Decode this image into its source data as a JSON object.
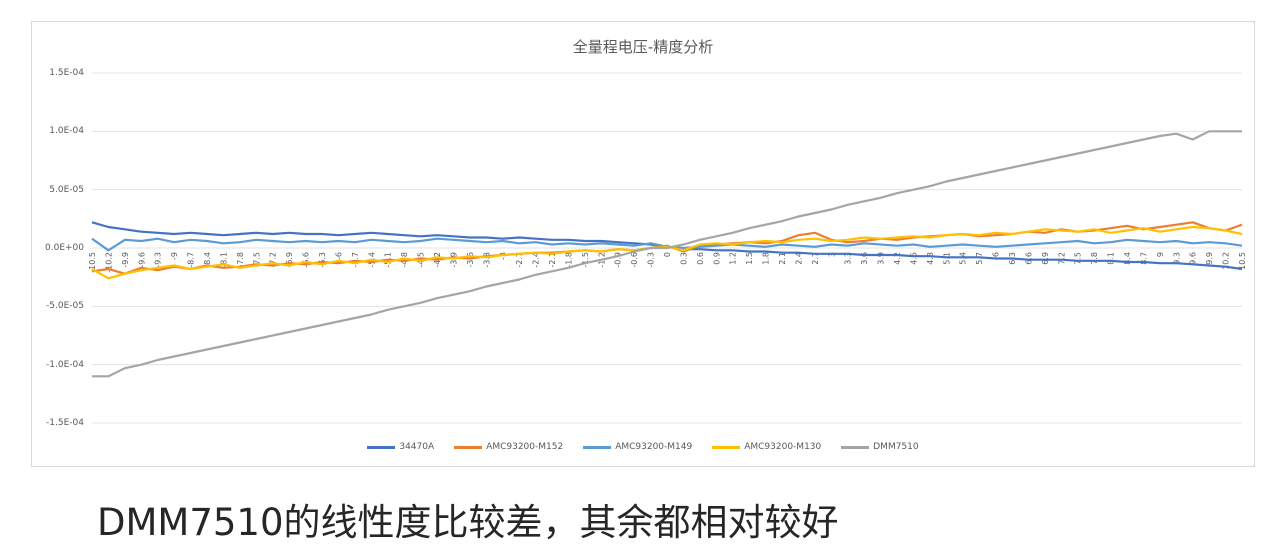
{
  "chart_data": {
    "type": "line",
    "title": "全量程电压-精度分析",
    "xlabel": "",
    "ylabel": "",
    "ylim": [
      -0.00015,
      0.00015
    ],
    "y_ticks": [
      "1.5E-04",
      "1.0E-04",
      "5.0E-05",
      "0.0E+00",
      "-5.0E-05",
      "-1.0E-04",
      "-1.5E-04"
    ],
    "y_tick_values": [
      0.00015,
      0.0001,
      5e-05,
      0,
      -5e-05,
      -0.0001,
      -0.00015
    ],
    "x": [
      -10.5,
      -10.2,
      -9.9,
      -9.6,
      -9.3,
      -9,
      -8.7,
      -8.4,
      -8.1,
      -7.8,
      -7.5,
      -7.2,
      -6.9,
      -6.6,
      -6.3,
      -6,
      -5.7,
      -5.4,
      -5.1,
      -4.8,
      -4.5,
      -4.2,
      -3.9,
      -3.6,
      -3.3,
      -3,
      -2.7,
      -2.4,
      -2.1,
      -1.8,
      -1.5,
      -1.2,
      -0.9,
      -0.6,
      -0.3,
      0,
      0.3,
      0.6,
      0.9,
      1.2,
      1.5,
      1.8,
      2.1,
      2.4,
      2.7,
      3,
      3.3,
      3.6,
      3.9,
      4.2,
      4.5,
      4.8,
      5.1,
      5.4,
      5.7,
      6,
      6.3,
      6.6,
      6.9,
      7.2,
      7.5,
      7.8,
      8.1,
      8.4,
      8.7,
      9,
      9.3,
      9.6,
      9.9,
      10.2,
      10.5
    ],
    "x_tick_labels": [
      "-10.5",
      "-10.2",
      "-9.9",
      "-9.6",
      "-9.3",
      "-9",
      "-8.7",
      "-8.4",
      "-8.1",
      "-7.8",
      "-7.5",
      "-7.2",
      "-6.9",
      "-6.6",
      "-6.3",
      "-6",
      "-5.7",
      "-5.4",
      "-5.1",
      "-4.8",
      "-4.5",
      "-4.2",
      "-3.9",
      "-3.6",
      "-3.3",
      "-3",
      "-2.7",
      "-2.4",
      "-2.1",
      "-1.8",
      "-1.5",
      "-1.2",
      "-0.9",
      "-0.6",
      "-0.3",
      "0",
      "0.3",
      "0.6",
      "0.9",
      "1.2",
      "1.5",
      "1.8",
      "2.1",
      "2.4",
      "2.7",
      "3",
      "3.3",
      "3.6",
      "3.9",
      "4.2",
      "4.5",
      "4.8",
      "5.1",
      "5.4",
      "5.7",
      "6",
      "6.3",
      "6.6",
      "6.9",
      "7.2",
      "7.5",
      "7.8",
      "8.1",
      "8.4",
      "8.7",
      "9",
      "9.3",
      "9.6",
      "9.9",
      "10.2",
      "10.5"
    ],
    "series": [
      {
        "name": "34470A",
        "color": "#4472c4",
        "values": [
          2.2e-05,
          1.8e-05,
          1.6e-05,
          1.4e-05,
          1.3e-05,
          1.2e-05,
          1.3e-05,
          1.2e-05,
          1.1e-05,
          1.2e-05,
          1.3e-05,
          1.2e-05,
          1.3e-05,
          1.2e-05,
          1.2e-05,
          1.1e-05,
          1.2e-05,
          1.3e-05,
          1.2e-05,
          1.1e-05,
          1e-05,
          1.1e-05,
          1e-05,
          9e-06,
          9e-06,
          8e-06,
          9e-06,
          8e-06,
          7e-06,
          7e-06,
          6e-06,
          6e-06,
          5e-06,
          4e-06,
          3e-06,
          1e-06,
          -1e-06,
          -1e-06,
          -2e-06,
          -2e-06,
          -3e-06,
          -3e-06,
          -4e-06,
          -4e-06,
          -5e-06,
          -5e-06,
          -5e-06,
          -6e-06,
          -6e-06,
          -6e-06,
          -7e-06,
          -7e-06,
          -8e-06,
          -8e-06,
          -8e-06,
          -9e-06,
          -9e-06,
          -1e-05,
          -1e-05,
          -1e-05,
          -1.1e-05,
          -1.1e-05,
          -1.1e-05,
          -1.2e-05,
          -1.2e-05,
          -1.3e-05,
          -1.3e-05,
          -1.4e-05,
          -1.5e-05,
          -1.6e-05,
          -1.8e-05
        ]
      },
      {
        "name": "AMC93200-M152",
        "color": "#ed7d31",
        "values": [
          -2e-05,
          -1.8e-05,
          -2.2e-05,
          -1.7e-05,
          -1.9e-05,
          -1.6e-05,
          -1.8e-05,
          -1.5e-05,
          -1.7e-05,
          -1.6e-05,
          -1.4e-05,
          -1.5e-05,
          -1.3e-05,
          -1.4e-05,
          -1.2e-05,
          -1.3e-05,
          -1.1e-05,
          -1.2e-05,
          -1e-05,
          -1.1e-05,
          -9e-06,
          -1e-05,
          -8e-06,
          -9e-06,
          -7e-06,
          -6e-06,
          -5e-06,
          -4e-06,
          -4e-06,
          -3e-06,
          -2e-06,
          -3e-06,
          -1e-06,
          -2e-06,
          0,
          2e-06,
          -3e-06,
          2e-06,
          3e-06,
          4e-06,
          5e-06,
          4e-06,
          6e-06,
          1.1e-05,
          1.3e-05,
          7e-06,
          5e-06,
          6e-06,
          8e-06,
          7e-06,
          9e-06,
          1e-05,
          1.1e-05,
          1.2e-05,
          1e-05,
          1.1e-05,
          1.2e-05,
          1.4e-05,
          1.3e-05,
          1.6e-05,
          1.4e-05,
          1.5e-05,
          1.7e-05,
          1.9e-05,
          1.6e-05,
          1.8e-05,
          2e-05,
          2.2e-05,
          1.7e-05,
          1.5e-05,
          2e-05
        ]
      },
      {
        "name": "AMC93200-M149",
        "color": "#5b9bd5",
        "values": [
          8e-06,
          -2e-06,
          7e-06,
          6e-06,
          8e-06,
          5e-06,
          7e-06,
          6e-06,
          4e-06,
          5e-06,
          7e-06,
          6e-06,
          5e-06,
          6e-06,
          5e-06,
          6e-06,
          5e-06,
          7e-06,
          6e-06,
          5e-06,
          6e-06,
          8e-06,
          7e-06,
          6e-06,
          5e-06,
          6e-06,
          4e-06,
          5e-06,
          3e-06,
          4e-06,
          3e-06,
          4e-06,
          3e-06,
          2e-06,
          4e-06,
          1e-06,
          0,
          1e-06,
          2e-06,
          3e-06,
          2e-06,
          1e-06,
          3e-06,
          2e-06,
          1e-06,
          3e-06,
          2e-06,
          4e-06,
          3e-06,
          2e-06,
          3e-06,
          1e-06,
          2e-06,
          3e-06,
          2e-06,
          1e-06,
          2e-06,
          3e-06,
          4e-06,
          5e-06,
          6e-06,
          4e-06,
          5e-06,
          7e-06,
          6e-06,
          5e-06,
          6e-06,
          4e-06,
          5e-06,
          4e-06,
          2e-06
        ]
      },
      {
        "name": "AMC93200-M130",
        "color": "#ffc000",
        "values": [
          -1.8e-05,
          -2.6e-05,
          -2.2e-05,
          -1.9e-05,
          -1.7e-05,
          -1.5e-05,
          -1.8e-05,
          -1.6e-05,
          -1.4e-05,
          -1.7e-05,
          -1.5e-05,
          -1.3e-05,
          -1.5e-05,
          -1.2e-05,
          -1.4e-05,
          -1.1e-05,
          -1.3e-05,
          -1e-05,
          -1.2e-05,
          -9e-06,
          -1.1e-05,
          -8e-06,
          -9e-06,
          -7e-06,
          -8e-06,
          -6e-06,
          -5e-06,
          -4e-06,
          -5e-06,
          -3e-06,
          -2e-06,
          -3e-06,
          -1e-06,
          -2e-06,
          0,
          1e-06,
          -2e-06,
          3e-06,
          4e-06,
          3e-06,
          5e-06,
          6e-06,
          5e-06,
          7e-06,
          8e-06,
          6e-06,
          7e-06,
          9e-06,
          8e-06,
          9e-06,
          1e-05,
          9e-06,
          1.1e-05,
          1.2e-05,
          1.1e-05,
          1.3e-05,
          1.2e-05,
          1.4e-05,
          1.6e-05,
          1.5e-05,
          1.4e-05,
          1.6e-05,
          1.3e-05,
          1.5e-05,
          1.7e-05,
          1.4e-05,
          1.6e-05,
          1.8e-05,
          1.7e-05,
          1.5e-05,
          1.2e-05
        ]
      },
      {
        "name": "DMM7510",
        "color": "#a5a5a5",
        "values": [
          -0.00011,
          -0.00011,
          -0.000103,
          -0.0001,
          -9.6e-05,
          -9.3e-05,
          -9e-05,
          -8.7e-05,
          -8.4e-05,
          -8.1e-05,
          -7.8e-05,
          -7.5e-05,
          -7.2e-05,
          -6.9e-05,
          -6.6e-05,
          -6.3e-05,
          -6e-05,
          -5.7e-05,
          -5.3e-05,
          -5e-05,
          -4.7e-05,
          -4.3e-05,
          -4e-05,
          -3.7e-05,
          -3.3e-05,
          -3e-05,
          -2.7e-05,
          -2.3e-05,
          -2e-05,
          -1.7e-05,
          -1.3e-05,
          -1e-05,
          -7e-06,
          -3e-06,
          0,
          0,
          3e-06,
          7e-06,
          1e-05,
          1.3e-05,
          1.7e-05,
          2e-05,
          2.3e-05,
          2.7e-05,
          3e-05,
          3.3e-05,
          3.7e-05,
          4e-05,
          4.3e-05,
          4.7e-05,
          5e-05,
          5.3e-05,
          5.7e-05,
          6e-05,
          6.3e-05,
          6.6e-05,
          6.9e-05,
          7.2e-05,
          7.5e-05,
          7.8e-05,
          8.1e-05,
          8.4e-05,
          8.7e-05,
          9e-05,
          9.3e-05,
          9.6e-05,
          9.8e-05,
          9.3e-05,
          0.0001,
          0.0001,
          0.0001
        ]
      }
    ],
    "grid": true,
    "legend_position": "bottom"
  },
  "caption": "DMM7510的线性度比较差，其余都相对较好"
}
